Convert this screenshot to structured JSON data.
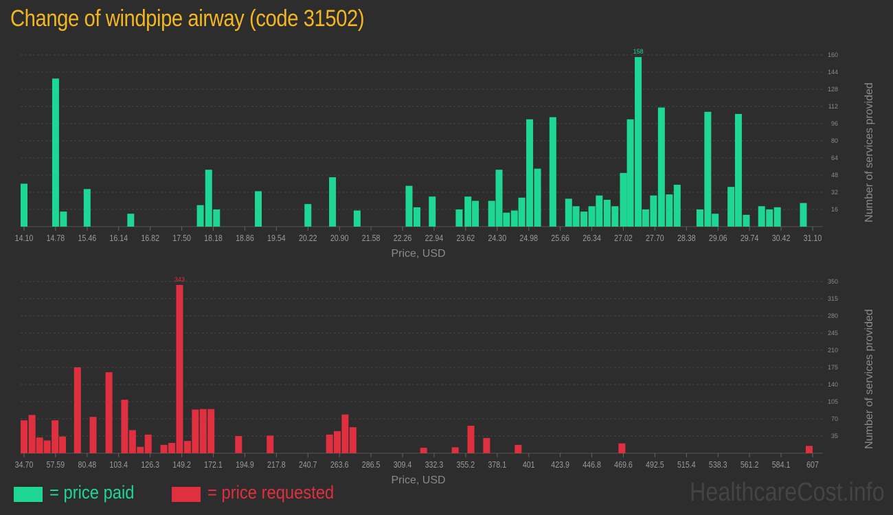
{
  "title": "Change of windpipe airway (code 31502)",
  "legend": {
    "paid_label": "= price paid",
    "requested_label": "= price requested"
  },
  "watermark": "HealthcareCost.info",
  "colors": {
    "paid": "#1fd794",
    "requested": "#e0303f",
    "title": "#f2b625",
    "background": "#2d2d2d"
  },
  "chart_data": [
    {
      "type": "bar",
      "series_name": "price paid",
      "color": "#1fd794",
      "xlabel": "Price, USD",
      "ylabel": "Number of services provided",
      "xlim": [
        14.1,
        31.1
      ],
      "ylim": [
        0,
        160
      ],
      "x_ticks": [
        "14.10",
        "14.78",
        "15.46",
        "16.14",
        "16.82",
        "17.50",
        "18.18",
        "18.86",
        "19.54",
        "20.22",
        "20.90",
        "21.58",
        "22.26",
        "22.94",
        "23.62",
        "24.30",
        "24.98",
        "25.66",
        "26.34",
        "27.02",
        "27.70",
        "28.38",
        "29.06",
        "29.74",
        "30.42",
        "31.10"
      ],
      "y_ticks": [
        16,
        32,
        48,
        64,
        80,
        96,
        112,
        128,
        144,
        160
      ],
      "peak_label": "158",
      "grid": true,
      "points": [
        {
          "x": 14.1,
          "y": 40
        },
        {
          "x": 14.78,
          "y": 138
        },
        {
          "x": 14.95,
          "y": 14
        },
        {
          "x": 15.46,
          "y": 35
        },
        {
          "x": 16.4,
          "y": 12
        },
        {
          "x": 17.9,
          "y": 20
        },
        {
          "x": 18.08,
          "y": 53
        },
        {
          "x": 18.25,
          "y": 16
        },
        {
          "x": 19.15,
          "y": 33
        },
        {
          "x": 20.22,
          "y": 21
        },
        {
          "x": 20.75,
          "y": 46
        },
        {
          "x": 21.28,
          "y": 15
        },
        {
          "x": 22.4,
          "y": 38
        },
        {
          "x": 22.57,
          "y": 18
        },
        {
          "x": 22.9,
          "y": 28
        },
        {
          "x": 23.48,
          "y": 16
        },
        {
          "x": 23.67,
          "y": 28
        },
        {
          "x": 23.83,
          "y": 24
        },
        {
          "x": 24.18,
          "y": 24
        },
        {
          "x": 24.34,
          "y": 53
        },
        {
          "x": 24.5,
          "y": 13
        },
        {
          "x": 24.67,
          "y": 15
        },
        {
          "x": 24.83,
          "y": 27
        },
        {
          "x": 25.0,
          "y": 100
        },
        {
          "x": 25.17,
          "y": 54
        },
        {
          "x": 25.5,
          "y": 102
        },
        {
          "x": 25.84,
          "y": 26
        },
        {
          "x": 26.0,
          "y": 19
        },
        {
          "x": 26.17,
          "y": 14
        },
        {
          "x": 26.34,
          "y": 19
        },
        {
          "x": 26.5,
          "y": 29
        },
        {
          "x": 26.67,
          "y": 25
        },
        {
          "x": 26.84,
          "y": 19
        },
        {
          "x": 27.02,
          "y": 50
        },
        {
          "x": 27.17,
          "y": 100
        },
        {
          "x": 27.34,
          "y": 158
        },
        {
          "x": 27.5,
          "y": 16
        },
        {
          "x": 27.67,
          "y": 29
        },
        {
          "x": 27.84,
          "y": 111
        },
        {
          "x": 28.01,
          "y": 30
        },
        {
          "x": 28.18,
          "y": 39
        },
        {
          "x": 28.67,
          "y": 16
        },
        {
          "x": 28.84,
          "y": 107
        },
        {
          "x": 29.0,
          "y": 12
        },
        {
          "x": 29.34,
          "y": 37
        },
        {
          "x": 29.5,
          "y": 105
        },
        {
          "x": 29.67,
          "y": 11
        },
        {
          "x": 30.0,
          "y": 19
        },
        {
          "x": 30.17,
          "y": 16
        },
        {
          "x": 30.34,
          "y": 18
        },
        {
          "x": 30.9,
          "y": 22
        }
      ]
    },
    {
      "type": "bar",
      "series_name": "price requested",
      "color": "#e0303f",
      "xlabel": "Price, USD",
      "ylabel": "Number of services provided",
      "xlim": [
        34.7,
        607
      ],
      "ylim": [
        0,
        350
      ],
      "x_ticks": [
        "34.70",
        "57.59",
        "80.48",
        "103.4",
        "126.3",
        "149.2",
        "172.1",
        "194.9",
        "217.8",
        "240.7",
        "263.6",
        "286.5",
        "309.4",
        "332.3",
        "355.2",
        "378.1",
        "401",
        "423.9",
        "446.8",
        "469.6",
        "492.5",
        "515.4",
        "538.3",
        "561.2",
        "584.1",
        "607"
      ],
      "y_ticks": [
        35,
        70,
        105,
        140,
        175,
        210,
        245,
        280,
        315,
        350
      ],
      "peak_label": "343",
      "grid": true,
      "points": [
        {
          "x": 34.7,
          "y": 67
        },
        {
          "x": 40.5,
          "y": 78
        },
        {
          "x": 46.0,
          "y": 32
        },
        {
          "x": 51.5,
          "y": 26
        },
        {
          "x": 57.2,
          "y": 67
        },
        {
          "x": 62.6,
          "y": 34
        },
        {
          "x": 73.5,
          "y": 175
        },
        {
          "x": 84.8,
          "y": 74
        },
        {
          "x": 96.3,
          "y": 165
        },
        {
          "x": 107.7,
          "y": 109
        },
        {
          "x": 113.4,
          "y": 47
        },
        {
          "x": 119.1,
          "y": 13
        },
        {
          "x": 124.8,
          "y": 38
        },
        {
          "x": 136.2,
          "y": 17
        },
        {
          "x": 141.9,
          "y": 21
        },
        {
          "x": 147.6,
          "y": 343
        },
        {
          "x": 153.3,
          "y": 25
        },
        {
          "x": 159.0,
          "y": 89
        },
        {
          "x": 164.7,
          "y": 90
        },
        {
          "x": 170.4,
          "y": 90
        },
        {
          "x": 190.4,
          "y": 35
        },
        {
          "x": 213.3,
          "y": 36
        },
        {
          "x": 256.4,
          "y": 38
        },
        {
          "x": 262.0,
          "y": 45
        },
        {
          "x": 267.7,
          "y": 79
        },
        {
          "x": 273.4,
          "y": 53
        },
        {
          "x": 324.7,
          "y": 11
        },
        {
          "x": 347.6,
          "y": 12
        },
        {
          "x": 359.0,
          "y": 56
        },
        {
          "x": 370.4,
          "y": 31
        },
        {
          "x": 393.3,
          "y": 17
        },
        {
          "x": 468.6,
          "y": 20
        },
        {
          "x": 604.5,
          "y": 15
        }
      ]
    }
  ]
}
